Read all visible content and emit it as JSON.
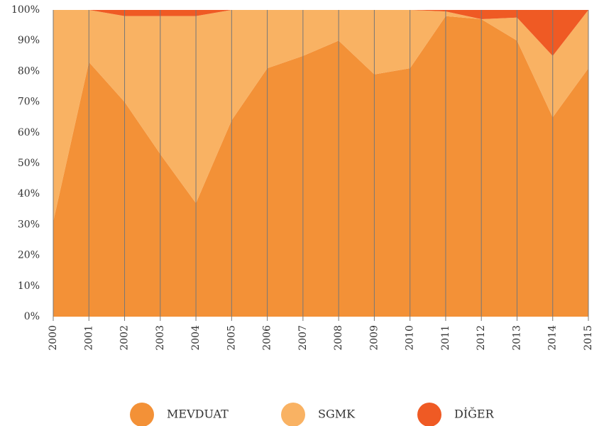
{
  "chart_data": {
    "type": "stacked-area",
    "categories": [
      "2000",
      "2001",
      "2002",
      "2003",
      "2004",
      "2005",
      "2006",
      "2007",
      "2008",
      "2009",
      "2010",
      "2011",
      "2012",
      "2013",
      "2014",
      "2015"
    ],
    "series": [
      {
        "name": "MEVDUAT",
        "color": "#f39137",
        "values": [
          31,
          83,
          70,
          53,
          37,
          64,
          81,
          85,
          90,
          79,
          81,
          98,
          97,
          90,
          65,
          81
        ]
      },
      {
        "name": "SGMK",
        "color": "#f9b263",
        "values": [
          69,
          17,
          28,
          45,
          61,
          36,
          19,
          15,
          10,
          21,
          19,
          1.5,
          0,
          7.5,
          20,
          19
        ]
      },
      {
        "name": "DİĞER",
        "color": "#ef5a24",
        "values": [
          0,
          0,
          2,
          2,
          2,
          0,
          0,
          0,
          0,
          0,
          0,
          0.5,
          3,
          2.5,
          15,
          0
        ]
      }
    ],
    "ylim": [
      0,
      100
    ],
    "yticks": [
      {
        "value": 0,
        "label": "0%"
      },
      {
        "value": 10,
        "label": "10%"
      },
      {
        "value": 20,
        "label": "20%"
      },
      {
        "value": 30,
        "label": "30%"
      },
      {
        "value": 40,
        "label": "40%"
      },
      {
        "value": 50,
        "label": "50%"
      },
      {
        "value": 60,
        "label": "60%"
      },
      {
        "value": 70,
        "label": "70%"
      },
      {
        "value": 80,
        "label": "80%"
      },
      {
        "value": 90,
        "label": "90%"
      },
      {
        "value": 100,
        "label": "100%"
      }
    ]
  }
}
